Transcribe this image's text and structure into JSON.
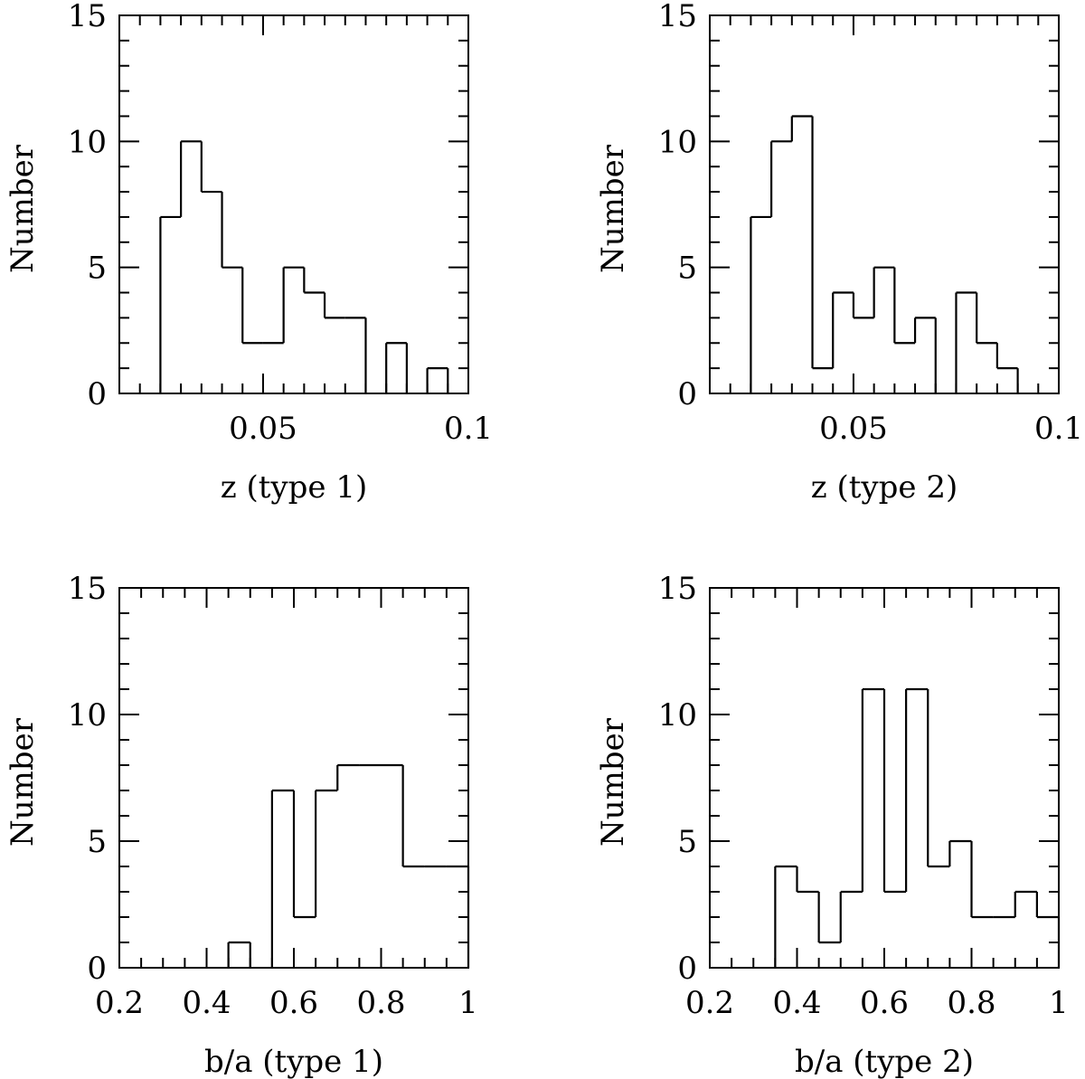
{
  "figure": {
    "colors": {
      "ink": "#000000",
      "background": "#ffffff"
    }
  },
  "chart_data": [
    {
      "type": "histogram",
      "xlabel": "z (type 1)",
      "ylabel": "Number",
      "xlim": [
        0.015,
        0.1
      ],
      "ylim": [
        0,
        15
      ],
      "xticks": [
        0.05,
        0.1
      ],
      "xtick_labels": [
        "0.05",
        "0.1"
      ],
      "yticks": [
        0,
        5,
        10,
        15
      ],
      "ytick_labels": [
        "0",
        "5",
        "10",
        "15"
      ],
      "bin_width": 0.005,
      "bin_starts": [
        0.015,
        0.02,
        0.025,
        0.03,
        0.035,
        0.04,
        0.045,
        0.05,
        0.055,
        0.06,
        0.065,
        0.07,
        0.075,
        0.08,
        0.085,
        0.09,
        0.095
      ],
      "counts": [
        0,
        0,
        7,
        10,
        8,
        5,
        2,
        2,
        5,
        4,
        3,
        3,
        0,
        2,
        0,
        1,
        0
      ]
    },
    {
      "type": "histogram",
      "xlabel": "z (type 2)",
      "ylabel": "Number",
      "xlim": [
        0.015,
        0.1
      ],
      "ylim": [
        0,
        15
      ],
      "xticks": [
        0.05,
        0.1
      ],
      "xtick_labels": [
        "0.05",
        "0.1"
      ],
      "yticks": [
        0,
        5,
        10,
        15
      ],
      "ytick_labels": [
        "0",
        "5",
        "10",
        "15"
      ],
      "bin_width": 0.005,
      "bin_starts": [
        0.015,
        0.02,
        0.025,
        0.03,
        0.035,
        0.04,
        0.045,
        0.05,
        0.055,
        0.06,
        0.065,
        0.07,
        0.075,
        0.08,
        0.085,
        0.09,
        0.095
      ],
      "counts": [
        0,
        0,
        7,
        10,
        11,
        1,
        4,
        3,
        5,
        2,
        3,
        0,
        4,
        2,
        1,
        0,
        0
      ]
    },
    {
      "type": "histogram",
      "xlabel": "b/a (type 1)",
      "ylabel": "Number",
      "xlim": [
        0.2,
        1.0
      ],
      "ylim": [
        0,
        15
      ],
      "xticks": [
        0.2,
        0.4,
        0.6,
        0.8,
        1.0
      ],
      "xtick_labels": [
        "0.2",
        "0.4",
        "0.6",
        "0.8",
        "1"
      ],
      "yticks": [
        0,
        5,
        10,
        15
      ],
      "ytick_labels": [
        "0",
        "5",
        "10",
        "15"
      ],
      "bin_width": 0.05,
      "bin_starts": [
        0.2,
        0.25,
        0.3,
        0.35,
        0.4,
        0.45,
        0.5,
        0.55,
        0.6,
        0.65,
        0.7,
        0.75,
        0.8,
        0.85,
        0.9,
        0.95
      ],
      "counts": [
        0,
        0,
        0,
        0,
        0,
        1,
        0,
        7,
        2,
        7,
        8,
        8,
        8,
        4,
        4,
        4
      ]
    },
    {
      "type": "histogram",
      "xlabel": "b/a (type 2)",
      "ylabel": "Number",
      "xlim": [
        0.2,
        1.0
      ],
      "ylim": [
        0,
        15
      ],
      "xticks": [
        0.2,
        0.4,
        0.6,
        0.8,
        1.0
      ],
      "xtick_labels": [
        "0.2",
        "0.4",
        "0.6",
        "0.8",
        "1"
      ],
      "yticks": [
        0,
        5,
        10,
        15
      ],
      "ytick_labels": [
        "0",
        "5",
        "10",
        "15"
      ],
      "bin_width": 0.05,
      "bin_starts": [
        0.2,
        0.25,
        0.3,
        0.35,
        0.4,
        0.45,
        0.5,
        0.55,
        0.6,
        0.65,
        0.7,
        0.75,
        0.8,
        0.85,
        0.9,
        0.95
      ],
      "counts": [
        0,
        0,
        0,
        4,
        3,
        1,
        3,
        11,
        3,
        11,
        4,
        5,
        2,
        2,
        3,
        2
      ]
    }
  ]
}
